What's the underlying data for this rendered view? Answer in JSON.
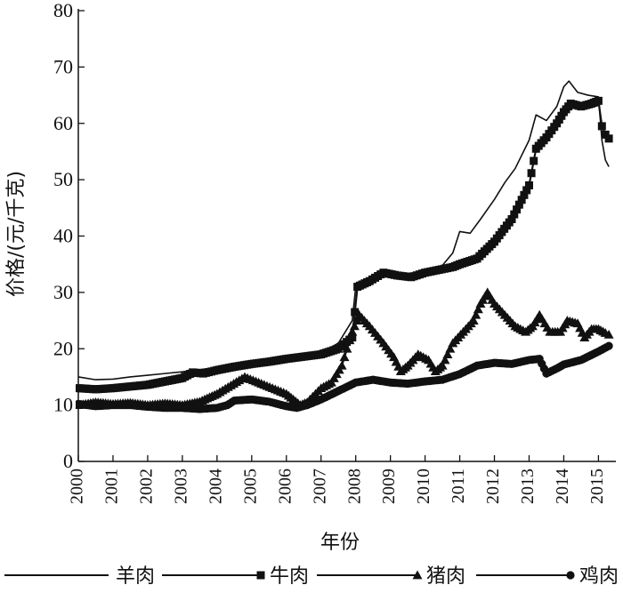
{
  "chart_data": {
    "type": "line",
    "title": "",
    "xlabel": "年份",
    "ylabel": "价格/(元/千克)",
    "xlim": [
      2000,
      2015.4
    ],
    "ylim": [
      0,
      80
    ],
    "yticks": [
      "0",
      "10",
      "20",
      "30",
      "40",
      "50",
      "60",
      "70",
      "80"
    ],
    "xticks": [
      "2000",
      "2001",
      "2002",
      "2003",
      "2004",
      "2005",
      "2006",
      "2007",
      "2008",
      "2009",
      "2010",
      "2011",
      "2012",
      "2013",
      "2014",
      "2015"
    ],
    "grid": false,
    "legend_position": "bottom",
    "series": [
      {
        "name": "羊肉",
        "marker": "none",
        "points": [
          [
            2000,
            15
          ],
          [
            2000.5,
            14.5
          ],
          [
            2001,
            14.6
          ],
          [
            2001.5,
            15
          ],
          [
            2002,
            15.3
          ],
          [
            2002.5,
            15.6
          ],
          [
            2003,
            15.9
          ],
          [
            2003.5,
            16.3
          ],
          [
            2004,
            16.6
          ],
          [
            2004.5,
            17
          ],
          [
            2005,
            17.6
          ],
          [
            2005.5,
            18
          ],
          [
            2006,
            18.5
          ],
          [
            2006.5,
            19
          ],
          [
            2007,
            19.3
          ],
          [
            2007.5,
            21
          ],
          [
            2007.9,
            25
          ],
          [
            2008,
            31
          ],
          [
            2008.3,
            32.3
          ],
          [
            2008.6,
            33
          ],
          [
            2009,
            33.8
          ],
          [
            2009.5,
            33.3
          ],
          [
            2010,
            33.8
          ],
          [
            2010.5,
            34.8
          ],
          [
            2010.8,
            37
          ],
          [
            2011,
            40.8
          ],
          [
            2011.3,
            40.5
          ],
          [
            2011.6,
            43
          ],
          [
            2012,
            46.5
          ],
          [
            2012.3,
            49.5
          ],
          [
            2012.6,
            52
          ],
          [
            2013,
            57
          ],
          [
            2013.2,
            61.5
          ],
          [
            2013.5,
            60.5
          ],
          [
            2013.8,
            63
          ],
          [
            2014,
            66.5
          ],
          [
            2014.15,
            67.5
          ],
          [
            2014.4,
            65.5
          ],
          [
            2014.7,
            65
          ],
          [
            2015,
            64.7
          ],
          [
            2015.1,
            57
          ],
          [
            2015.2,
            53.5
          ],
          [
            2015.3,
            52.3
          ]
        ]
      },
      {
        "name": "牛肉",
        "marker": "square",
        "points": [
          [
            2000,
            13
          ],
          [
            2000.5,
            12.8
          ],
          [
            2001,
            13
          ],
          [
            2001.5,
            13.3
          ],
          [
            2002,
            13.6
          ],
          [
            2002.5,
            14.2
          ],
          [
            2003,
            14.8
          ],
          [
            2003.3,
            15.8
          ],
          [
            2003.6,
            15.6
          ],
          [
            2004,
            16.2
          ],
          [
            2004.5,
            16.8
          ],
          [
            2005,
            17.3
          ],
          [
            2005.5,
            17.7
          ],
          [
            2006,
            18.2
          ],
          [
            2006.5,
            18.6
          ],
          [
            2007,
            19
          ],
          [
            2007.5,
            20
          ],
          [
            2007.9,
            22
          ],
          [
            2008.05,
            31
          ],
          [
            2008.4,
            32
          ],
          [
            2008.8,
            33.5
          ],
          [
            2009.2,
            33
          ],
          [
            2009.6,
            32.7
          ],
          [
            2010,
            33.5
          ],
          [
            2010.4,
            34
          ],
          [
            2010.8,
            34.5
          ],
          [
            2011,
            35
          ],
          [
            2011.5,
            36
          ],
          [
            2012,
            39
          ],
          [
            2012.5,
            43
          ],
          [
            2013,
            49
          ],
          [
            2013.2,
            55.5
          ],
          [
            2013.5,
            57.5
          ],
          [
            2013.8,
            60
          ],
          [
            2014,
            62
          ],
          [
            2014.2,
            63.5
          ],
          [
            2014.5,
            63
          ],
          [
            2014.8,
            63.5
          ],
          [
            2015,
            64
          ],
          [
            2015.1,
            59.5
          ],
          [
            2015.2,
            58
          ],
          [
            2015.3,
            57.3
          ]
        ]
      },
      {
        "name": "猪肉",
        "marker": "triangle",
        "points": [
          [
            2000,
            10
          ],
          [
            2000.5,
            10.5
          ],
          [
            2001,
            10.2
          ],
          [
            2001.5,
            10.4
          ],
          [
            2002,
            10
          ],
          [
            2002.5,
            10.3
          ],
          [
            2003,
            10
          ],
          [
            2003.5,
            10.6
          ],
          [
            2004,
            12
          ],
          [
            2004.4,
            13.5
          ],
          [
            2004.8,
            15
          ],
          [
            2005.2,
            14
          ],
          [
            2005.6,
            13
          ],
          [
            2006,
            12
          ],
          [
            2006.2,
            11
          ],
          [
            2006.4,
            10
          ],
          [
            2006.6,
            10.5
          ],
          [
            2007,
            13
          ],
          [
            2007.3,
            14
          ],
          [
            2007.6,
            17
          ],
          [
            2007.9,
            23
          ],
          [
            2008.1,
            26
          ],
          [
            2008.4,
            24
          ],
          [
            2008.8,
            21
          ],
          [
            2009.1,
            18.5
          ],
          [
            2009.3,
            16
          ],
          [
            2009.5,
            17
          ],
          [
            2009.8,
            19
          ],
          [
            2010.1,
            18
          ],
          [
            2010.3,
            16
          ],
          [
            2010.5,
            17
          ],
          [
            2010.8,
            21
          ],
          [
            2011.1,
            23
          ],
          [
            2011.4,
            25
          ],
          [
            2011.6,
            28
          ],
          [
            2011.8,
            30
          ],
          [
            2012,
            28
          ],
          [
            2012.3,
            26
          ],
          [
            2012.6,
            24
          ],
          [
            2012.9,
            23
          ],
          [
            2013.1,
            24
          ],
          [
            2013.3,
            26
          ],
          [
            2013.6,
            23
          ],
          [
            2013.9,
            23
          ],
          [
            2014.1,
            25
          ],
          [
            2014.4,
            24.5
          ],
          [
            2014.6,
            22
          ],
          [
            2014.8,
            23.5
          ],
          [
            2015,
            23.5
          ],
          [
            2015.2,
            22.8
          ],
          [
            2015.3,
            22.5
          ]
        ]
      },
      {
        "name": "鸡肉",
        "marker": "circle",
        "points": [
          [
            2000,
            10.2
          ],
          [
            2000.5,
            9.8
          ],
          [
            2001,
            10
          ],
          [
            2001.5,
            10
          ],
          [
            2002,
            9.7
          ],
          [
            2002.5,
            9.5
          ],
          [
            2003,
            9.5
          ],
          [
            2003.5,
            9.3
          ],
          [
            2004,
            9.5
          ],
          [
            2004.3,
            10
          ],
          [
            2004.5,
            10.8
          ],
          [
            2005,
            11
          ],
          [
            2005.5,
            10.6
          ],
          [
            2006,
            9.8
          ],
          [
            2006.3,
            9.5
          ],
          [
            2006.6,
            10
          ],
          [
            2007,
            11
          ],
          [
            2007.5,
            12.5
          ],
          [
            2008,
            14
          ],
          [
            2008.5,
            14.5
          ],
          [
            2009,
            14
          ],
          [
            2009.5,
            13.8
          ],
          [
            2010,
            14.2
          ],
          [
            2010.5,
            14.5
          ],
          [
            2011,
            15.5
          ],
          [
            2011.5,
            17
          ],
          [
            2012,
            17.5
          ],
          [
            2012.5,
            17.3
          ],
          [
            2013,
            18
          ],
          [
            2013.3,
            18.2
          ],
          [
            2013.5,
            15.6
          ],
          [
            2013.8,
            16.5
          ],
          [
            2014,
            17.2
          ],
          [
            2014.5,
            18
          ],
          [
            2015,
            19.5
          ],
          [
            2015.3,
            20.5
          ]
        ]
      }
    ]
  }
}
